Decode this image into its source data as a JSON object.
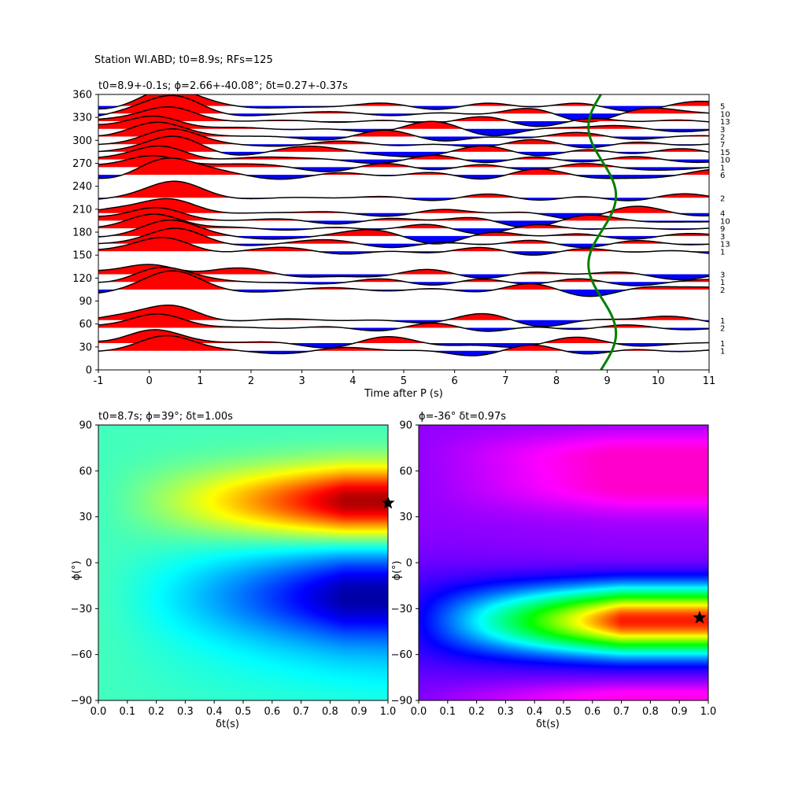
{
  "suptitle": "Station WI.ABD; t0=8.9s; RFs=125",
  "colors": {
    "positive": "#ff0000",
    "negative": "#0000ff",
    "trace": "#000000",
    "curve": "#008000"
  },
  "chart_data": [
    {
      "type": "line",
      "title": "t0=8.9+-0.1s; ϕ=2.66+-40.08°; δt=0.27+-0.37s",
      "xlabel": "Time after P (s)",
      "ylabel": "",
      "xlim": [
        -1,
        11
      ],
      "ylim": [
        0,
        360
      ],
      "xticks": [
        "-1",
        "0",
        "1",
        "2",
        "3",
        "4",
        "5",
        "6",
        "7",
        "8",
        "9",
        "10",
        "11"
      ],
      "yticks": [
        "0",
        "30",
        "60",
        "90",
        "120",
        "150",
        "180",
        "210",
        "240",
        "270",
        "300",
        "330",
        "360"
      ],
      "series": [
        {
          "baz": 345,
          "count": "5"
        },
        {
          "baz": 335,
          "count": "10"
        },
        {
          "baz": 325,
          "count": "13"
        },
        {
          "baz": 315,
          "count": "3"
        },
        {
          "baz": 305,
          "count": "2"
        },
        {
          "baz": 295,
          "count": "7"
        },
        {
          "baz": 285,
          "count": "15"
        },
        {
          "baz": 275,
          "count": "10"
        },
        {
          "baz": 265,
          "count": "1"
        },
        {
          "baz": 255,
          "count": "6"
        },
        {
          "baz": 225,
          "count": "2"
        },
        {
          "baz": 205,
          "count": "4"
        },
        {
          "baz": 195,
          "count": "10"
        },
        {
          "baz": 185,
          "count": "9"
        },
        {
          "baz": 175,
          "count": "3"
        },
        {
          "baz": 165,
          "count": "13"
        },
        {
          "baz": 155,
          "count": "1"
        },
        {
          "baz": 125,
          "count": "3"
        },
        {
          "baz": 115,
          "count": "1"
        },
        {
          "baz": 105,
          "count": "2"
        },
        {
          "baz": 65,
          "count": "1"
        },
        {
          "baz": 55,
          "count": "2"
        },
        {
          "baz": 35,
          "count": "1"
        },
        {
          "baz": 25,
          "count": "1"
        }
      ],
      "curve": {
        "name": "",
        "center_time": 8.9,
        "amplitude": 0.27,
        "phase_deg": 2.66
      }
    },
    {
      "type": "heatmap",
      "title": "t0=8.7s; ϕ=39°; δt=1.00s",
      "xlabel": "δt(s)",
      "ylabel": "ϕ(°)",
      "xlim": [
        0,
        1
      ],
      "ylim": [
        -90,
        90
      ],
      "xticks": [
        "0.0",
        "0.1",
        "0.2",
        "0.3",
        "0.4",
        "0.5",
        "0.6",
        "0.7",
        "0.8",
        "0.9",
        "1.0"
      ],
      "yticks": [
        "−90",
        "−60",
        "−30",
        "0",
        "30",
        "60",
        "90"
      ],
      "best": {
        "dt": 1.0,
        "phi": 39
      },
      "colormap": "jet"
    },
    {
      "type": "heatmap",
      "title": "ϕ=-36° δt=0.97s",
      "xlabel": "δt(s)",
      "ylabel": "ϕ(°)",
      "xlim": [
        0,
        1
      ],
      "ylim": [
        -90,
        90
      ],
      "xticks": [
        "0.0",
        "0.1",
        "0.2",
        "0.3",
        "0.4",
        "0.5",
        "0.6",
        "0.7",
        "0.8",
        "0.9",
        "1.0"
      ],
      "yticks": [
        "−90",
        "−60",
        "−30",
        "0",
        "30",
        "60",
        "90"
      ],
      "best": {
        "dt": 0.97,
        "phi": -36
      },
      "colormap": "hsv"
    }
  ]
}
